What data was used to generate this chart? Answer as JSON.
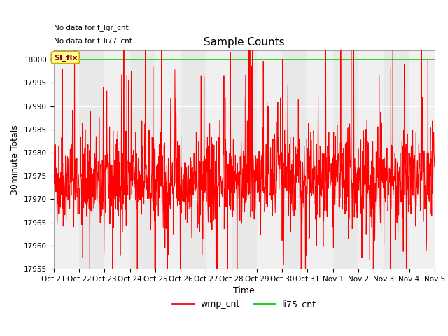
{
  "title": "Sample Counts",
  "xlabel": "Time",
  "ylabel": "30minute Totals",
  "ylim": [
    17955,
    18002
  ],
  "yticks": [
    17955,
    17960,
    17965,
    17970,
    17975,
    17980,
    17985,
    17990,
    17995,
    18000
  ],
  "xtick_labels": [
    "Oct 21",
    "Oct 22",
    "Oct 23",
    "Oct 24",
    "Oct 25",
    "Oct 26",
    "Oct 27",
    "Oct 28",
    "Oct 29",
    "Oct 30",
    "Oct 31",
    "Nov 1",
    "Nov 2",
    "Nov 3",
    "Nov 4",
    "Nov 5"
  ],
  "annotations": [
    "No data for f_lgr_cnt",
    "No data for f_li77_cnt"
  ],
  "annotation_box_label": "SI_flx",
  "legend_entries": [
    "wmp_cnt",
    "li75_cnt"
  ],
  "legend_colors": [
    "red",
    "green"
  ],
  "line_color": "red",
  "green_line_color": "#00cc00",
  "background_color": "#ffffff",
  "plot_bg_color": "#e8e8e8",
  "band_color_light": "#f0f0f0",
  "band_color_dark": "#d8d8d8",
  "seed": 42,
  "n_points": 1500,
  "base_value": 17974,
  "noise_std": 5,
  "spike_prob": 0.05,
  "spike_min": 5,
  "spike_max": 25,
  "dip_prob": 0.04,
  "dip_min": 5,
  "dip_max": 20
}
